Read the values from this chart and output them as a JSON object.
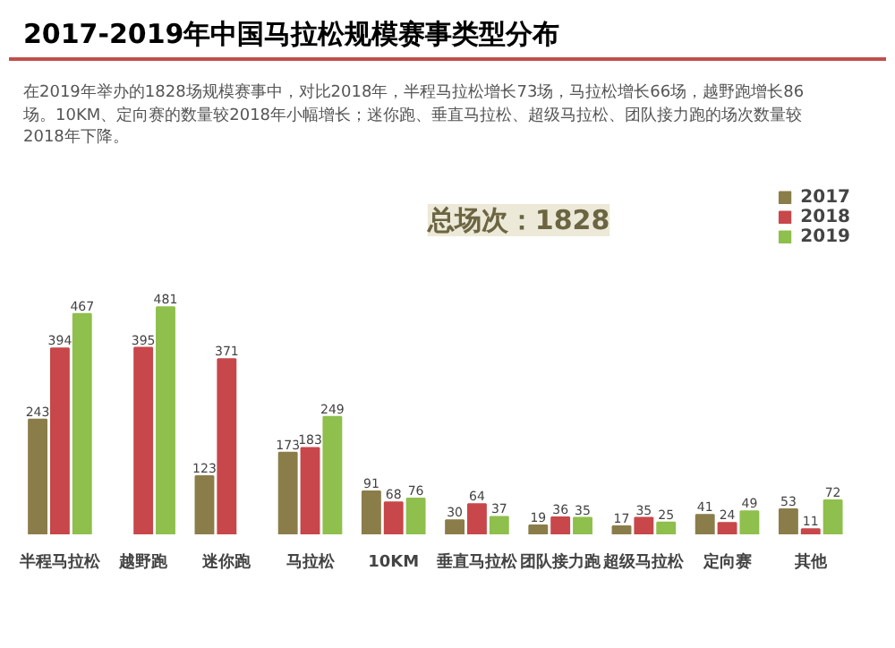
{
  "chart_data": {
    "type": "bar",
    "title": "2017-2019年中国马拉松规模赛事类型分布",
    "subtitle": "在2019年举办的1828场规模赛事中，对比2018年，半程马拉松增长73场，马拉松增长66场，越野跑增长86场。10KM、定向赛的数量较2018年小幅增长；迷你跑、垂直马拉松、超级马拉松、团队接力跑的场次数量较2018年下降。",
    "categories": [
      "半程马拉松",
      "越野跑",
      "迷你跑",
      "马拉松",
      "10KM",
      "垂直马拉松",
      "团队接力跑",
      "超级马拉松",
      "定向赛",
      "其他"
    ],
    "series": [
      {
        "name": "2017",
        "color": "#8b7d4a",
        "values": [
          243,
          null,
          123,
          173,
          91,
          30,
          19,
          17,
          41,
          53
        ]
      },
      {
        "name": "2018",
        "color": "#c8474a",
        "values": [
          394,
          395,
          371,
          183,
          68,
          64,
          36,
          35,
          24,
          11
        ]
      },
      {
        "name": "2019",
        "color": "#8fbf4c",
        "values": [
          467,
          481,
          null,
          249,
          76,
          37,
          35,
          25,
          49,
          72
        ]
      }
    ],
    "annotations": [
      "总场次：1828"
    ],
    "data_labels": true,
    "legend": "top right"
  }
}
